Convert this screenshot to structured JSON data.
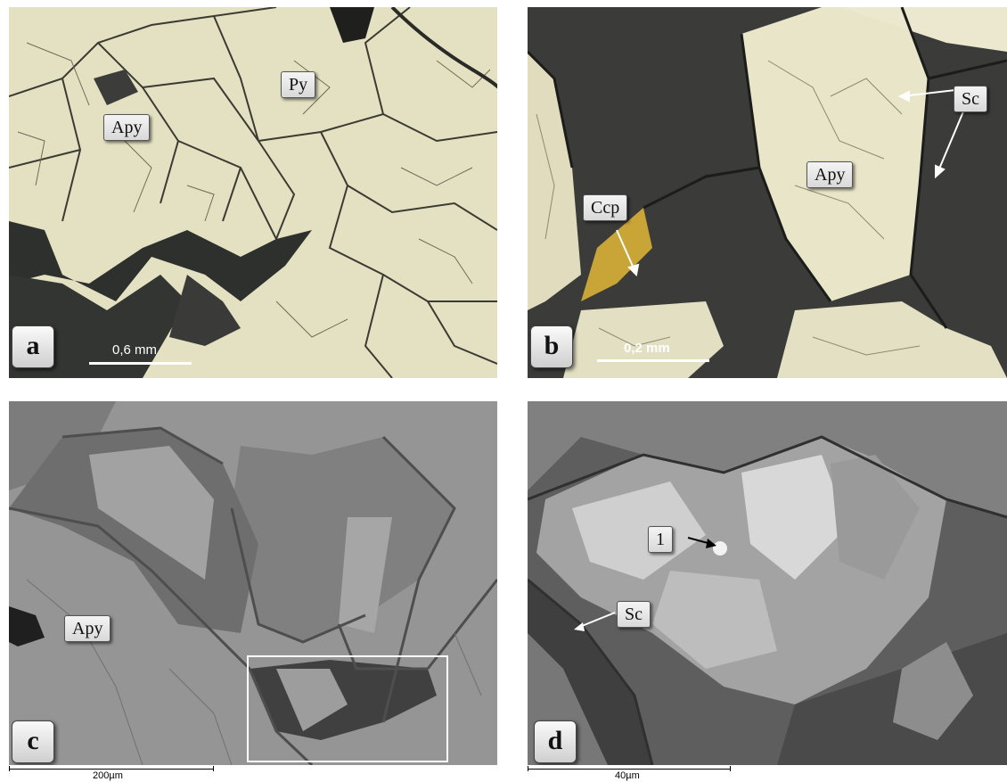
{
  "panels": {
    "a": {
      "letter": "a",
      "labels": {
        "py": "Py",
        "apy": "Apy"
      },
      "scale": "0,6 mm"
    },
    "b": {
      "letter": "b",
      "labels": {
        "sc": "Sc",
        "apy": "Apy",
        "ccp": "Ccp"
      },
      "scale": "0,2 mm"
    },
    "c": {
      "letter": "c",
      "labels": {
        "apy": "Apy"
      },
      "scale": "200µm"
    },
    "d": {
      "letter": "d",
      "labels": {
        "one": "1",
        "sc": "Sc"
      },
      "scale": "40µm"
    }
  },
  "colors": {
    "pyrite_reflected": "#e6e3c3",
    "dark_gangue": "#3a3b3a",
    "chalcopyrite": "#c9a436",
    "sem_gray": "#8f8f8f"
  }
}
